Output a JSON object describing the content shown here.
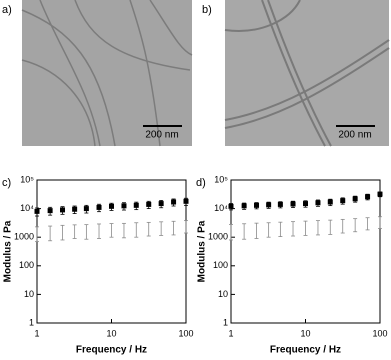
{
  "images": [
    {
      "label": "a)",
      "scale_bar": "200 nm"
    },
    {
      "label": "b)",
      "scale_bar": "200 nm"
    }
  ],
  "chart_data": [
    {
      "type": "scatter",
      "label": "c)",
      "x_label": "Frequency / Hz",
      "y_label": "Modulus / Pa",
      "xscale": "log",
      "yscale": "log",
      "x": [
        1,
        1.5,
        2.2,
        3.2,
        4.6,
        6.8,
        10,
        14.7,
        21.5,
        31.6,
        46.4,
        68.1,
        100
      ],
      "series": [
        {
          "color": "#000000",
          "marker": "square",
          "values": [
            8000,
            8500,
            9000,
            9500,
            10000,
            11000,
            12000,
            12500,
            13000,
            14000,
            15000,
            17000,
            18000
          ],
          "errors": [
            2500,
            2600,
            2700,
            2800,
            3000,
            3200,
            3400,
            3600,
            3800,
            4000,
            4300,
            4700,
            5000
          ]
        },
        {
          "color": "#8a8a8a",
          "marker": "none",
          "values": [
            1500,
            1600,
            1700,
            1800,
            1800,
            1900,
            2000,
            2000,
            2100,
            2200,
            2300,
            2400,
            2600
          ],
          "errors": [
            800,
            850,
            900,
            900,
            950,
            1000,
            1000,
            1050,
            1100,
            1100,
            1150,
            1200,
            1200
          ]
        }
      ],
      "xlim": [
        1,
        100
      ],
      "ylim": [
        1,
        100000
      ],
      "xticks": [
        1,
        10,
        100
      ],
      "yticks": [
        1,
        10,
        100,
        1000,
        {
          "value": 10000,
          "label": "10⁴"
        },
        {
          "value": 100000,
          "label": "10⁵"
        }
      ]
    },
    {
      "type": "scatter",
      "label": "d)",
      "x_label": "Frequency / Hz",
      "y_label": "Modulus / Pa",
      "xscale": "log",
      "yscale": "log",
      "x": [
        1,
        1.5,
        2.2,
        3.2,
        4.6,
        6.8,
        10,
        14.7,
        21.5,
        31.6,
        46.4,
        68.1,
        100
      ],
      "series": [
        {
          "color": "#000000",
          "marker": "square",
          "values": [
            12000,
            12500,
            13000,
            13500,
            14000,
            14500,
            15000,
            16000,
            17000,
            19000,
            22000,
            26000,
            32000
          ],
          "errors": [
            3000,
            3100,
            3200,
            3300,
            3400,
            3600,
            3800,
            4000,
            4300,
            4700,
            5200,
            5800,
            6000
          ]
        },
        {
          "color": "#8a8a8a",
          "marker": "none",
          "values": [
            1800,
            1900,
            2000,
            2100,
            2200,
            2300,
            2400,
            2500,
            2600,
            2800,
            3000,
            3300,
            3600
          ],
          "errors": [
            1000,
            1050,
            1100,
            1100,
            1150,
            1200,
            1250,
            1300,
            1350,
            1400,
            1450,
            1500,
            1600
          ]
        }
      ],
      "xlim": [
        1,
        100
      ],
      "ylim": [
        1,
        100000
      ],
      "xticks": [
        1,
        10,
        100
      ],
      "yticks": [
        1,
        10,
        100,
        1000,
        {
          "value": 10000,
          "label": "10⁴"
        },
        {
          "value": 100000,
          "label": "10⁵"
        }
      ]
    }
  ]
}
